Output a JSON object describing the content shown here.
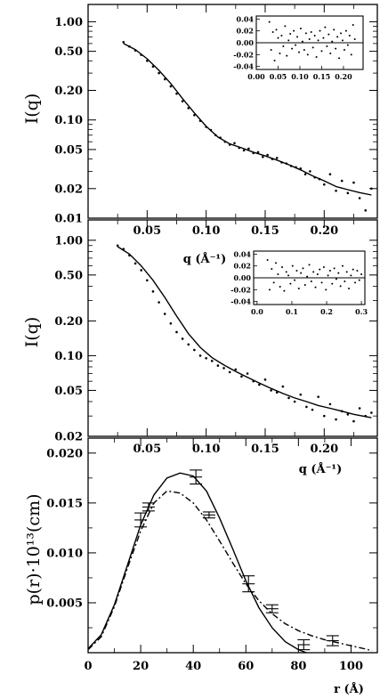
{
  "chart_data": [
    {
      "type": "scatter",
      "xlabel": "",
      "ylabel": "I(q)",
      "yscale": "log",
      "xlim": [
        0.0,
        0.245
      ],
      "ylim": [
        0.01,
        1.5
      ],
      "xticks": [
        "0.05",
        "0.10",
        "0.15",
        "0.20"
      ],
      "xtick_values": [
        0.05,
        0.1,
        0.15,
        0.2
      ],
      "yticks": [
        "1.00",
        "0.50",
        "0.20",
        "0.10",
        "0.05",
        "0.02",
        "0.01"
      ],
      "ytick_values": [
        1.0,
        0.5,
        0.2,
        0.1,
        0.05,
        0.02,
        0.01
      ],
      "fit_curve": {
        "x": [
          0.03,
          0.04,
          0.05,
          0.06,
          0.07,
          0.08,
          0.09,
          0.1,
          0.11,
          0.12,
          0.13,
          0.14,
          0.15,
          0.16,
          0.17,
          0.18,
          0.19,
          0.2,
          0.21,
          0.22,
          0.23,
          0.24
        ],
        "y": [
          0.6,
          0.52,
          0.42,
          0.32,
          0.235,
          0.165,
          0.118,
          0.086,
          0.067,
          0.057,
          0.052,
          0.047,
          0.043,
          0.039,
          0.035,
          0.031,
          0.027,
          0.024,
          0.021,
          0.0195,
          0.0182,
          0.0172
        ]
      },
      "points": {
        "x": [
          0.03,
          0.035,
          0.04,
          0.045,
          0.05,
          0.055,
          0.06,
          0.065,
          0.07,
          0.075,
          0.08,
          0.085,
          0.09,
          0.095,
          0.1,
          0.104,
          0.108,
          0.112,
          0.116,
          0.12,
          0.124,
          0.128,
          0.132,
          0.136,
          0.14,
          0.144,
          0.148,
          0.152,
          0.156,
          0.16,
          0.164,
          0.168,
          0.172,
          0.176,
          0.18,
          0.184,
          0.188,
          0.192,
          0.196,
          0.2,
          0.205,
          0.21,
          0.215,
          0.22,
          0.225,
          0.23,
          0.235,
          0.24
        ],
        "y": [
          0.62,
          0.56,
          0.51,
          0.46,
          0.4,
          0.35,
          0.3,
          0.26,
          0.22,
          0.185,
          0.155,
          0.132,
          0.112,
          0.098,
          0.085,
          0.079,
          0.07,
          0.066,
          0.06,
          0.056,
          0.058,
          0.052,
          0.049,
          0.051,
          0.046,
          0.047,
          0.042,
          0.044,
          0.04,
          0.041,
          0.037,
          0.036,
          0.034,
          0.033,
          0.032,
          0.028,
          0.03,
          0.026,
          0.025,
          0.022,
          0.028,
          0.019,
          0.024,
          0.018,
          0.023,
          0.016,
          0.012,
          0.02
        ]
      },
      "inset": {
        "type": "scatter",
        "xlim": [
          0.0,
          0.245
        ],
        "ylim": [
          -0.045,
          0.045
        ],
        "xticks": [
          "0.00",
          "0.05",
          "0.10",
          "0.15",
          "0.20"
        ],
        "xtick_values": [
          0.0,
          0.05,
          0.1,
          0.15,
          0.2
        ],
        "yticks": [
          "0.04",
          "0.02",
          "0.00",
          "-0.02",
          "-0.04"
        ],
        "ytick_values": [
          0.04,
          0.02,
          0.0,
          -0.02,
          -0.04
        ],
        "zero_line": true,
        "points": {
          "x": [
            0.03,
            0.034,
            0.038,
            0.042,
            0.046,
            0.05,
            0.054,
            0.058,
            0.062,
            0.066,
            0.07,
            0.074,
            0.078,
            0.082,
            0.086,
            0.09,
            0.094,
            0.098,
            0.102,
            0.106,
            0.11,
            0.114,
            0.118,
            0.122,
            0.126,
            0.13,
            0.134,
            0.138,
            0.142,
            0.146,
            0.15,
            0.154,
            0.158,
            0.162,
            0.166,
            0.17,
            0.174,
            0.178,
            0.182,
            0.186,
            0.19,
            0.194,
            0.198,
            0.202,
            0.206,
            0.21,
            0.214,
            0.218,
            0.222,
            0.226
          ],
          "y": [
            0.035,
            -0.012,
            0.018,
            -0.03,
            0.022,
            0.008,
            -0.018,
            0.012,
            -0.006,
            0.028,
            -0.022,
            0.004,
            0.015,
            -0.01,
            0.02,
            -0.004,
            0.01,
            -0.016,
            0.024,
            0.002,
            -0.012,
            0.016,
            -0.02,
            0.006,
            0.018,
            -0.008,
            0.012,
            -0.024,
            0.004,
            0.02,
            -0.014,
            0.008,
            0.026,
            -0.006,
            0.014,
            -0.018,
            0.002,
            0.022,
            -0.01,
            0.01,
            -0.026,
            0.016,
            0.004,
            -0.012,
            0.02,
            -0.004,
            0.012,
            -0.02,
            0.03,
            0.006
          ]
        }
      }
    },
    {
      "type": "scatter",
      "xlabel": "q (Å⁻¹)",
      "ylabel": "I(q)",
      "yscale": "log",
      "xlim": [
        0.0,
        0.245
      ],
      "ylim": [
        0.02,
        1.5
      ],
      "xticks": [
        "0.05",
        "0.10",
        "0.15",
        "0.20"
      ],
      "xtick_values": [
        0.05,
        0.1,
        0.15,
        0.2
      ],
      "yticks": [
        "1.00",
        "0.50",
        "0.20",
        "0.10",
        "0.05",
        "0.02"
      ],
      "ytick_values": [
        1.0,
        0.5,
        0.2,
        0.1,
        0.05,
        0.02
      ],
      "fit_curve": {
        "x": [
          0.025,
          0.035,
          0.045,
          0.055,
          0.065,
          0.075,
          0.085,
          0.095,
          0.105,
          0.115,
          0.125,
          0.135,
          0.145,
          0.155,
          0.165,
          0.175,
          0.185,
          0.195,
          0.205,
          0.215,
          0.225,
          0.24
        ],
        "y": [
          0.88,
          0.76,
          0.6,
          0.45,
          0.32,
          0.22,
          0.155,
          0.118,
          0.096,
          0.083,
          0.073,
          0.065,
          0.058,
          0.052,
          0.047,
          0.043,
          0.04,
          0.037,
          0.035,
          0.033,
          0.031,
          0.029
        ]
      },
      "points": {
        "x": [
          0.025,
          0.03,
          0.035,
          0.04,
          0.045,
          0.05,
          0.055,
          0.06,
          0.065,
          0.07,
          0.075,
          0.08,
          0.085,
          0.09,
          0.095,
          0.1,
          0.105,
          0.11,
          0.115,
          0.12,
          0.125,
          0.13,
          0.135,
          0.14,
          0.145,
          0.15,
          0.155,
          0.16,
          0.165,
          0.17,
          0.175,
          0.18,
          0.185,
          0.19,
          0.195,
          0.2,
          0.205,
          0.21,
          0.215,
          0.22,
          0.225,
          0.23,
          0.235,
          0.24
        ],
        "y": [
          0.9,
          0.84,
          0.74,
          0.63,
          0.55,
          0.45,
          0.36,
          0.29,
          0.23,
          0.19,
          0.16,
          0.14,
          0.125,
          0.112,
          0.1,
          0.095,
          0.09,
          0.082,
          0.078,
          0.072,
          0.076,
          0.066,
          0.07,
          0.06,
          0.056,
          0.062,
          0.05,
          0.048,
          0.054,
          0.043,
          0.04,
          0.046,
          0.036,
          0.034,
          0.044,
          0.03,
          0.038,
          0.028,
          0.033,
          0.031,
          0.027,
          0.035,
          0.03,
          0.032
        ]
      },
      "inset": {
        "type": "scatter",
        "xlim": [
          -0.01,
          0.31
        ],
        "ylim": [
          -0.045,
          0.045
        ],
        "xticks": [
          "0.0",
          "0.1",
          "0.2",
          "0.3"
        ],
        "xtick_values": [
          0.0,
          0.1,
          0.2,
          0.3
        ],
        "yticks": [
          "0.04",
          "0.02",
          "0.00",
          "-0.02",
          "-0.04"
        ],
        "ytick_values": [
          0.04,
          0.02,
          0.0,
          -0.02,
          -0.04
        ],
        "zero_line": true,
        "points": {
          "x": [
            0.03,
            0.036,
            0.042,
            0.048,
            0.054,
            0.06,
            0.066,
            0.072,
            0.078,
            0.084,
            0.09,
            0.096,
            0.102,
            0.108,
            0.114,
            0.12,
            0.126,
            0.132,
            0.138,
            0.144,
            0.15,
            0.156,
            0.162,
            0.168,
            0.174,
            0.18,
            0.186,
            0.192,
            0.198,
            0.204,
            0.21,
            0.216,
            0.222,
            0.228,
            0.234,
            0.24,
            0.246,
            0.252,
            0.258,
            0.264,
            0.27,
            0.276,
            0.282,
            0.288,
            0.294,
            0.3
          ],
          "y": [
            0.03,
            -0.02,
            0.015,
            -0.008,
            0.025,
            0.006,
            -0.015,
            0.018,
            -0.022,
            0.01,
            0.004,
            -0.01,
            0.02,
            -0.004,
            0.012,
            -0.018,
            0.008,
            0.016,
            -0.012,
            0.002,
            0.022,
            -0.006,
            0.01,
            -0.016,
            0.006,
            0.014,
            -0.008,
            0.018,
            -0.02,
            0.004,
            0.012,
            -0.01,
            0.016,
            -0.002,
            0.008,
            -0.014,
            0.02,
            -0.006,
            0.01,
            -0.018,
            0.004,
            0.014,
            -0.008,
            0.012,
            -0.004,
            0.006
          ]
        }
      }
    },
    {
      "type": "line",
      "xlabel": "r (Å)",
      "ylabel": "p(r)·10¹³(cm)",
      "xlim": [
        0,
        110
      ],
      "ylim": [
        0.0,
        0.0215
      ],
      "xticks": [
        "0",
        "20",
        "40",
        "60",
        "80",
        "100"
      ],
      "xtick_values": [
        0,
        20,
        40,
        60,
        80,
        100
      ],
      "yticks": [
        "0.020",
        "0.015",
        "0.010",
        "0.005"
      ],
      "ytick_values": [
        0.02,
        0.015,
        0.01,
        0.005
      ],
      "series": [
        {
          "style": "solid",
          "x": [
            0,
            5,
            10,
            15,
            20,
            25,
            30,
            35,
            40,
            45,
            50,
            55,
            60,
            65,
            70,
            75,
            80,
            83
          ],
          "y": [
            0.0004,
            0.0018,
            0.0048,
            0.0088,
            0.0128,
            0.0158,
            0.0175,
            0.018,
            0.0177,
            0.0162,
            0.0135,
            0.0104,
            0.0072,
            0.0045,
            0.0025,
            0.0011,
            0.0003,
            0.0
          ]
        },
        {
          "style": "dash-dot",
          "x": [
            0,
            5,
            10,
            15,
            20,
            25,
            30,
            35,
            40,
            45,
            50,
            55,
            60,
            65,
            70,
            75,
            80,
            85,
            90,
            95,
            100,
            105,
            108
          ],
          "y": [
            0.0003,
            0.0016,
            0.0046,
            0.0085,
            0.0122,
            0.015,
            0.0162,
            0.016,
            0.015,
            0.0133,
            0.0112,
            0.009,
            0.0069,
            0.0052,
            0.0039,
            0.0029,
            0.0022,
            0.0017,
            0.0013,
            0.001,
            0.0007,
            0.0004,
            0.0002
          ]
        }
      ],
      "error_points": {
        "x": [
          20,
          23,
          41,
          46,
          61,
          70,
          82,
          93
        ],
        "y": [
          0.0133,
          0.0146,
          0.0176,
          0.0138,
          0.0069,
          0.0044,
          0.0008,
          0.0012
        ],
        "err": [
          0.0007,
          0.0004,
          0.0007,
          0.0003,
          0.0008,
          0.0004,
          0.0005,
          0.0005
        ]
      }
    }
  ]
}
